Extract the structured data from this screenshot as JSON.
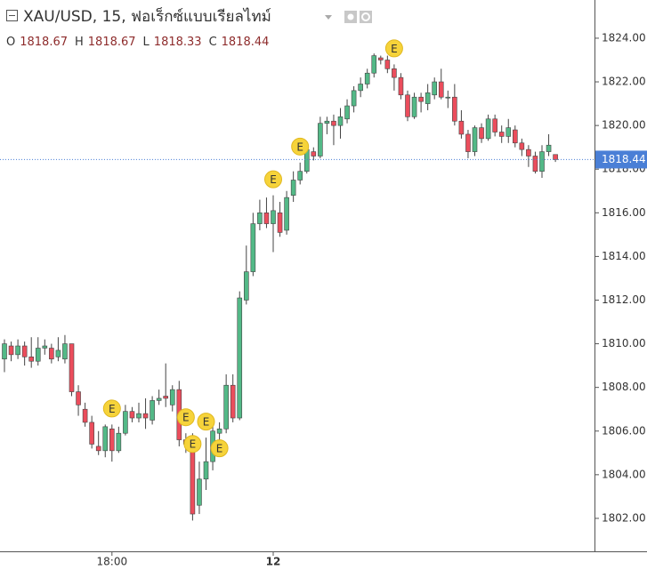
{
  "chart_data": {
    "type": "candlestick",
    "title": "XAU/USD, 15, ฟอเร็กซ์แบบเรียลไทม์",
    "ohlc_labels": [
      "O",
      "H",
      "L",
      "C"
    ],
    "categories": [
      null,
      null,
      null,
      null,
      null,
      null,
      null,
      null,
      null,
      null,
      null,
      null,
      null,
      null,
      null,
      null,
      "18:00",
      null,
      null,
      null,
      null,
      null,
      null,
      null,
      null,
      null,
      null,
      null,
      null,
      null,
      null,
      null,
      null,
      null,
      null,
      null,
      null,
      null,
      null,
      null,
      "12",
      null,
      null,
      null,
      null,
      null,
      null,
      null,
      null,
      null,
      null,
      null,
      null,
      null,
      null,
      null,
      null,
      null,
      null,
      null,
      null,
      null,
      null,
      null,
      null,
      null,
      null,
      null,
      null,
      null,
      null,
      null,
      null,
      null,
      null,
      null,
      null,
      null,
      null,
      null,
      null,
      null,
      null
    ],
    "open": [
      1809.3,
      1809.9,
      1809.5,
      1809.9,
      1809.4,
      1809.2,
      1809.8,
      1809.8,
      1809.4,
      1809.3,
      1810.0,
      1807.8,
      1807.0,
      1806.4,
      1805.3,
      1805.1,
      1806.1,
      1805.1,
      1805.9,
      1806.9,
      1806.6,
      1806.8,
      1806.5,
      1807.4,
      1807.6,
      1807.2,
      1807.9,
      1805.6,
      1805.6,
      1802.6,
      1803.8,
      1804.6,
      1805.9,
      1806.1,
      1808.1,
      1806.6,
      1812.0,
      1813.3,
      1815.5,
      1816.0,
      1815.5,
      1816.0,
      1815.2,
      1816.8,
      1817.5,
      1817.9,
      1818.8,
      1818.6,
      1820.1,
      1820.2,
      1820.0,
      1820.3,
      1820.9,
      1821.6,
      1821.9,
      1822.4,
      1823.1,
      1823.0,
      1822.6,
      1822.2,
      1821.4,
      1820.4,
      1821.3,
      1821.0,
      1821.4,
      1822.0,
      1821.3,
      1821.3,
      1820.2,
      1819.6,
      1818.8,
      1819.9,
      1819.4,
      1820.3,
      1819.7,
      1819.5,
      1819.8,
      1819.2,
      1818.9,
      1818.6,
      1817.9,
      1818.8,
      1818.67
    ],
    "high": [
      1810.2,
      1810.1,
      1810.2,
      1810.1,
      1810.3,
      1810.3,
      1810.2,
      1810.0,
      1810.3,
      1810.4,
      1810.0,
      1808.1,
      1807.3,
      1806.7,
      1806.0,
      1806.3,
      1806.3,
      1806.2,
      1807.2,
      1807.1,
      1807.3,
      1807.5,
      1807.6,
      1807.9,
      1809.1,
      1808.1,
      1808.3,
      1805.9,
      1805.9,
      1804.6,
      1805.7,
      1806.3,
      1806.4,
      1808.6,
      1808.6,
      1812.4,
      1814.5,
      1816.0,
      1816.6,
      1816.7,
      1816.8,
      1816.5,
      1817.0,
      1817.9,
      1818.3,
      1819.1,
      1819.0,
      1820.4,
      1820.4,
      1820.5,
      1820.8,
      1821.2,
      1821.8,
      1822.2,
      1822.6,
      1823.3,
      1823.2,
      1823.2,
      1822.8,
      1822.4,
      1821.6,
      1821.5,
      1821.5,
      1821.9,
      1822.2,
      1822.6,
      1821.6,
      1821.9,
      1820.7,
      1819.8,
      1820.0,
      1820.1,
      1820.5,
      1820.5,
      1820.0,
      1820.3,
      1820.0,
      1819.4,
      1819.1,
      1818.8,
      1819.1,
      1819.6,
      1818.67
    ],
    "low": [
      1808.7,
      1809.2,
      1809.3,
      1809.0,
      1808.9,
      1809.0,
      1809.5,
      1809.1,
      1809.2,
      1809.1,
      1807.6,
      1806.7,
      1806.2,
      1805.2,
      1804.9,
      1804.8,
      1804.6,
      1805.0,
      1805.8,
      1806.4,
      1806.4,
      1806.1,
      1806.3,
      1807.2,
      1807.1,
      1806.9,
      1805.3,
      1805.0,
      1801.9,
      1802.2,
      1803.3,
      1804.2,
      1805.6,
      1805.9,
      1806.4,
      1806.5,
      1811.8,
      1813.1,
      1815.2,
      1815.3,
      1814.2,
      1814.9,
      1815.0,
      1816.5,
      1817.3,
      1817.8,
      1818.4,
      1818.5,
      1819.6,
      1819.1,
      1819.4,
      1820.1,
      1820.6,
      1821.3,
      1821.7,
      1822.2,
      1822.8,
      1822.4,
      1821.6,
      1821.2,
      1820.2,
      1820.3,
      1820.6,
      1820.7,
      1821.2,
      1821.2,
      1820.8,
      1820.0,
      1819.4,
      1818.5,
      1818.6,
      1819.2,
      1819.3,
      1819.5,
      1819.2,
      1819.2,
      1819.0,
      1818.6,
      1818.1,
      1817.8,
      1817.6,
      1818.6,
      1818.33
    ],
    "close": [
      1810.0,
      1809.5,
      1809.9,
      1809.4,
      1809.2,
      1809.8,
      1809.9,
      1809.3,
      1809.7,
      1810.0,
      1807.8,
      1807.2,
      1806.4,
      1805.4,
      1805.1,
      1806.2,
      1805.1,
      1805.9,
      1806.9,
      1806.6,
      1806.8,
      1806.6,
      1807.4,
      1807.5,
      1807.5,
      1807.9,
      1805.6,
      1805.4,
      1802.2,
      1803.8,
      1804.6,
      1806.0,
      1806.1,
      1808.1,
      1806.6,
      1812.1,
      1813.3,
      1815.5,
      1816.0,
      1815.5,
      1816.1,
      1815.1,
      1816.7,
      1817.5,
      1817.9,
      1818.9,
      1818.6,
      1820.1,
      1820.2,
      1820.0,
      1820.4,
      1820.9,
      1821.6,
      1821.9,
      1822.4,
      1823.2,
      1823.0,
      1822.6,
      1822.2,
      1821.4,
      1820.4,
      1821.3,
      1821.1,
      1821.5,
      1822.0,
      1821.3,
      1821.3,
      1820.2,
      1819.6,
      1818.8,
      1819.9,
      1819.4,
      1820.3,
      1819.7,
      1819.5,
      1819.9,
      1819.2,
      1818.9,
      1818.6,
      1817.9,
      1818.8,
      1819.1,
      1818.44
    ],
    "up_color": "#53b987",
    "down_color": "#eb4d5c",
    "events": {
      "label": "E",
      "indices": [
        16,
        27,
        28,
        30,
        32,
        40,
        44,
        58
      ]
    },
    "ylim": [
      1800.49,
      1825.75
    ],
    "yticks": [
      {
        "value": 1802,
        "label": "1802.00"
      },
      {
        "value": 1804,
        "label": "1804.00"
      },
      {
        "value": 1806,
        "label": "1806.00"
      },
      {
        "value": 1808,
        "label": "1808.00"
      },
      {
        "value": 1810,
        "label": "1810.00"
      },
      {
        "value": 1812,
        "label": "1812.00"
      },
      {
        "value": 1814,
        "label": "1814.00"
      },
      {
        "value": 1816,
        "label": "1816.00"
      },
      {
        "value": 1818,
        "label": "1818.00"
      },
      {
        "value": 1820,
        "label": "1820.00"
      },
      {
        "value": 1822,
        "label": "1822.00"
      },
      {
        "value": 1824,
        "label": "1824.00"
      }
    ],
    "price_line_color": "#4a7fd6"
  }
}
